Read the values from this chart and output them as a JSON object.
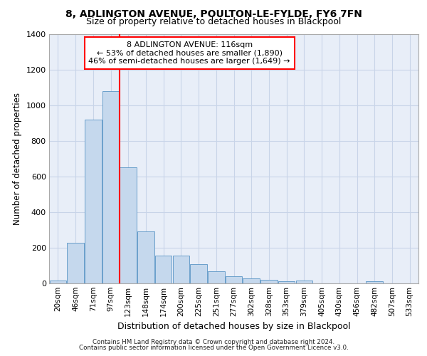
{
  "title1": "8, ADLINGTON AVENUE, POULTON-LE-FYLDE, FY6 7FN",
  "title2": "Size of property relative to detached houses in Blackpool",
  "xlabel": "Distribution of detached houses by size in Blackpool",
  "ylabel": "Number of detached properties",
  "bar_color": "#c5d8ed",
  "bar_edge_color": "#6a9fcb",
  "categories": [
    "20sqm",
    "46sqm",
    "71sqm",
    "97sqm",
    "123sqm",
    "148sqm",
    "174sqm",
    "200sqm",
    "225sqm",
    "251sqm",
    "277sqm",
    "302sqm",
    "328sqm",
    "353sqm",
    "379sqm",
    "405sqm",
    "430sqm",
    "456sqm",
    "482sqm",
    "507sqm",
    "533sqm"
  ],
  "values": [
    15,
    225,
    920,
    1080,
    650,
    290,
    155,
    155,
    105,
    65,
    40,
    25,
    20,
    10,
    15,
    0,
    0,
    0,
    10,
    0,
    0
  ],
  "ylim": [
    0,
    1400
  ],
  "yticks": [
    0,
    200,
    400,
    600,
    800,
    1000,
    1200,
    1400
  ],
  "red_line_x": 4,
  "annotation_title": "8 ADLINGTON AVENUE: 116sqm",
  "annotation_line1": "← 53% of detached houses are smaller (1,890)",
  "annotation_line2": "46% of semi-detached houses are larger (1,649) →",
  "footer_line1": "Contains HM Land Registry data © Crown copyright and database right 2024.",
  "footer_line2": "Contains public sector information licensed under the Open Government Licence v3.0.",
  "grid_color": "#c8d4e8",
  "bg_color": "#e8eef8"
}
